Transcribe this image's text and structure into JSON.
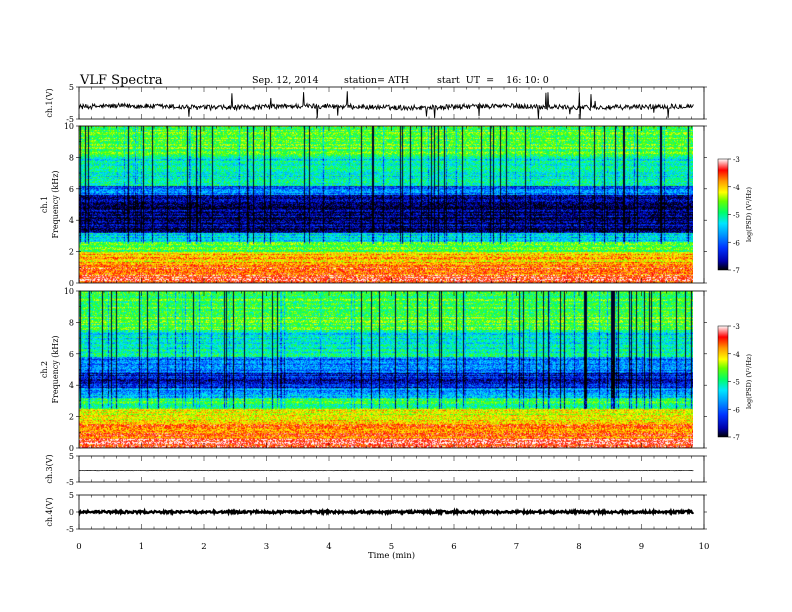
{
  "header": {
    "title": "VLF  Spectra",
    "date": "Sep. 12, 2014",
    "station": "station= ATH",
    "start_ut": "start  UT  =    16: 10: 0"
  },
  "time_axis": {
    "label": "Time  (min)",
    "ticks": [
      0,
      1,
      2,
      3,
      4,
      5,
      6,
      7,
      8,
      9,
      10
    ],
    "range": [
      0,
      10
    ],
    "data_end": 9.83
  },
  "colors": {
    "colormap": [
      "#000000",
      "#0000aa",
      "#0033ff",
      "#0099ff",
      "#00e5ff",
      "#00ff66",
      "#66ff00",
      "#ffff00",
      "#ff9900",
      "#ff0000",
      "#ffffff"
    ],
    "trace": "#000000"
  },
  "chart_data": [
    {
      "type": "line",
      "ylabel": "ch.1(V)",
      "yticks": [
        5,
        -5
      ],
      "ylim": [
        -5,
        5
      ],
      "x_range": [
        0,
        9.83
      ],
      "baseline": -1.2,
      "noise_amplitude": 0.8,
      "description_values": [
        {
          "x": 0,
          "y": -1.0
        },
        {
          "x": 1,
          "y": -1.3
        },
        {
          "x": 2,
          "y": -1.4
        },
        {
          "x": 3,
          "y": -1.5
        },
        {
          "x": 4,
          "y": -1.2
        },
        {
          "x": 5,
          "y": -1.1
        },
        {
          "x": 6,
          "y": -1.0
        },
        {
          "x": 7,
          "y": -1.2
        },
        {
          "x": 8,
          "y": -1.1
        },
        {
          "x": 9,
          "y": -1.0
        },
        {
          "x": 9.83,
          "y": -0.8
        }
      ]
    },
    {
      "type": "heatmap",
      "ylabel_line1": "ch.1",
      "ylabel_line2": "Frequency  (kHz)",
      "yticks": [
        0,
        2,
        4,
        6,
        8,
        10
      ],
      "ylim": [
        0,
        10
      ],
      "colorbar": {
        "label": "log(PSD) (V²/Hz)",
        "ticks": [
          -3,
          -4,
          -5,
          -6,
          -7
        ],
        "range": [
          -7,
          -3
        ]
      },
      "bands": [
        {
          "f_low": 0,
          "f_high": 0.5,
          "level": -3.3
        },
        {
          "f_low": 0.5,
          "f_high": 1.2,
          "level": -3.6
        },
        {
          "f_low": 1.2,
          "f_high": 2.0,
          "level": -4.0
        },
        {
          "f_low": 2.0,
          "f_high": 2.6,
          "level": -4.7
        },
        {
          "f_low": 2.6,
          "f_high": 3.2,
          "level": -5.4
        },
        {
          "f_low": 3.2,
          "f_high": 5.6,
          "level": -6.7
        },
        {
          "f_low": 5.6,
          "f_high": 6.2,
          "level": -6.0
        },
        {
          "f_low": 6.2,
          "f_high": 8.0,
          "level": -5.3
        },
        {
          "f_low": 8.0,
          "f_high": 10.0,
          "level": -4.7
        }
      ]
    },
    {
      "type": "heatmap",
      "ylabel_line1": "ch.2",
      "ylabel_line2": "Frequency  (kHz)",
      "yticks": [
        0,
        2,
        4,
        6,
        8,
        10
      ],
      "ylim": [
        0,
        10
      ],
      "colorbar": {
        "label": "log(PSD) (V²/Hz)",
        "ticks": [
          -3,
          -4,
          -5,
          -6,
          -7
        ],
        "range": [
          -7,
          -3
        ]
      },
      "bands": [
        {
          "f_low": 0,
          "f_high": 0.6,
          "level": -3.4
        },
        {
          "f_low": 0.6,
          "f_high": 1.5,
          "level": -3.7
        },
        {
          "f_low": 1.5,
          "f_high": 2.5,
          "level": -4.2
        },
        {
          "f_low": 2.5,
          "f_high": 3.2,
          "level": -5.0
        },
        {
          "f_low": 3.2,
          "f_high": 3.8,
          "level": -5.7
        },
        {
          "f_low": 3.8,
          "f_high": 4.8,
          "level": -6.4
        },
        {
          "f_low": 4.8,
          "f_high": 5.8,
          "level": -5.9
        },
        {
          "f_low": 5.8,
          "f_high": 7.5,
          "level": -5.3
        },
        {
          "f_low": 7.5,
          "f_high": 10.0,
          "level": -4.8
        }
      ]
    },
    {
      "type": "line",
      "ylabel": "ch.3(V)",
      "yticks": [
        5,
        -5
      ],
      "ylim": [
        -5,
        5
      ],
      "x_range": [
        0,
        9.83
      ],
      "baseline": -0.6,
      "noise_amplitude": 0.08
    },
    {
      "type": "line",
      "ylabel": "ch.4(V)",
      "yticks": [
        5,
        0,
        -5
      ],
      "ylim": [
        -5,
        5
      ],
      "x_range": [
        0,
        9.83
      ],
      "baseline": 0,
      "noise_amplitude": 0.35
    }
  ]
}
